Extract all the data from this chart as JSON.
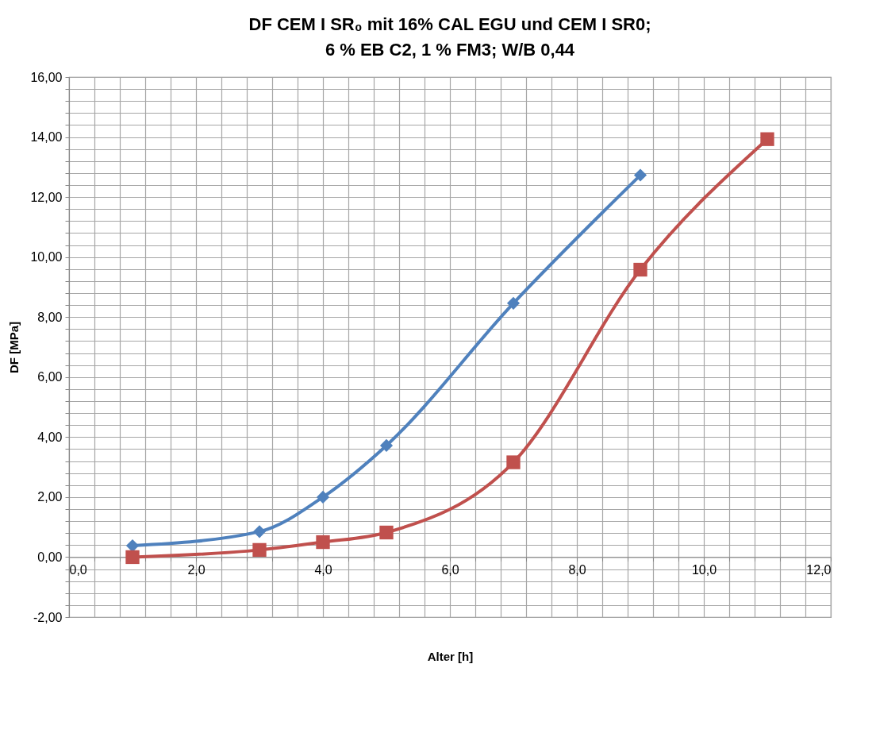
{
  "chart_data": {
    "type": "line",
    "title": "DF CEM I SR₀ mit 16% CAL EGU und CEM I SR0;\n6 % EB C2, 1 % FM3; W/B 0,44",
    "xlabel": "Alter [h]",
    "ylabel": "DF [MPa]",
    "series": [
      {
        "color": "#4f81bd",
        "marker": "diamond",
        "x": [
          1,
          3,
          4,
          5,
          7,
          9
        ],
        "values": [
          0.38,
          0.85,
          2.0,
          3.72,
          8.46,
          12.73
        ]
      },
      {
        "color": "#c0504d",
        "marker": "square",
        "x": [
          1,
          3,
          4,
          5,
          7,
          9,
          11
        ],
        "values": [
          0.0,
          0.24,
          0.5,
          0.82,
          3.16,
          9.58,
          13.93
        ]
      }
    ],
    "xlim": [
      0,
      12
    ],
    "ylim": [
      -2,
      16
    ],
    "xticks": [
      {
        "value": 0,
        "label": "0,0"
      },
      {
        "value": 0.4,
        "label": null
      },
      {
        "value": 0.8,
        "label": null
      },
      {
        "value": 1.2,
        "label": null
      },
      {
        "value": 1.6,
        "label": null
      },
      {
        "value": 2,
        "label": "2,0"
      },
      {
        "value": 2.4,
        "label": null
      },
      {
        "value": 2.8,
        "label": null
      },
      {
        "value": 3.2,
        "label": null
      },
      {
        "value": 3.6,
        "label": null
      },
      {
        "value": 4,
        "label": "4,0"
      },
      {
        "value": 4.4,
        "label": null
      },
      {
        "value": 4.8,
        "label": null
      },
      {
        "value": 5.2,
        "label": null
      },
      {
        "value": 5.6,
        "label": null
      },
      {
        "value": 6,
        "label": "6,0"
      },
      {
        "value": 6.4,
        "label": null
      },
      {
        "value": 6.8,
        "label": null
      },
      {
        "value": 7.2,
        "label": null
      },
      {
        "value": 7.6,
        "label": null
      },
      {
        "value": 8,
        "label": "8,0"
      },
      {
        "value": 8.4,
        "label": null
      },
      {
        "value": 8.8,
        "label": null
      },
      {
        "value": 9.2,
        "label": null
      },
      {
        "value": 9.6,
        "label": null
      },
      {
        "value": 10,
        "label": "10,0"
      },
      {
        "value": 10.4,
        "label": null
      },
      {
        "value": 10.8,
        "label": null
      },
      {
        "value": 11.2,
        "label": null
      },
      {
        "value": 11.6,
        "label": null
      },
      {
        "value": 12,
        "label": "12,0"
      }
    ],
    "yticks": [
      {
        "value": -2,
        "label": "-2,00"
      },
      {
        "value": -1.6,
        "label": null
      },
      {
        "value": -1.2,
        "label": null
      },
      {
        "value": -0.8,
        "label": null
      },
      {
        "value": -0.4,
        "label": null
      },
      {
        "value": 0,
        "label": "0,00"
      },
      {
        "value": 0.4,
        "label": null
      },
      {
        "value": 0.8,
        "label": null
      },
      {
        "value": 1.2,
        "label": null
      },
      {
        "value": 1.6,
        "label": null
      },
      {
        "value": 2,
        "label": "2,00"
      },
      {
        "value": 2.4,
        "label": null
      },
      {
        "value": 2.8,
        "label": null
      },
      {
        "value": 3.2,
        "label": null
      },
      {
        "value": 3.6,
        "label": null
      },
      {
        "value": 4,
        "label": "4,00"
      },
      {
        "value": 4.4,
        "label": null
      },
      {
        "value": 4.8,
        "label": null
      },
      {
        "value": 5.2,
        "label": null
      },
      {
        "value": 5.6,
        "label": null
      },
      {
        "value": 6,
        "label": "6,00"
      },
      {
        "value": 6.4,
        "label": null
      },
      {
        "value": 6.8,
        "label": null
      },
      {
        "value": 7.2,
        "label": null
      },
      {
        "value": 7.6,
        "label": null
      },
      {
        "value": 8,
        "label": "8,00"
      },
      {
        "value": 8.4,
        "label": null
      },
      {
        "value": 8.8,
        "label": null
      },
      {
        "value": 9.2,
        "label": null
      },
      {
        "value": 9.6,
        "label": null
      },
      {
        "value": 10,
        "label": "10,00"
      },
      {
        "value": 10.4,
        "label": null
      },
      {
        "value": 10.8,
        "label": null
      },
      {
        "value": 11.2,
        "label": null
      },
      {
        "value": 11.6,
        "label": null
      },
      {
        "value": 12,
        "label": "12,00"
      },
      {
        "value": 12.4,
        "label": null
      },
      {
        "value": 12.8,
        "label": null
      },
      {
        "value": 13.2,
        "label": null
      },
      {
        "value": 13.6,
        "label": null
      },
      {
        "value": 14,
        "label": "14,00"
      },
      {
        "value": 14.4,
        "label": null
      },
      {
        "value": 14.8,
        "label": null
      },
      {
        "value": 15.2,
        "label": null
      },
      {
        "value": 15.6,
        "label": null
      },
      {
        "value": 16,
        "label": "16,00"
      }
    ],
    "grid": true
  }
}
